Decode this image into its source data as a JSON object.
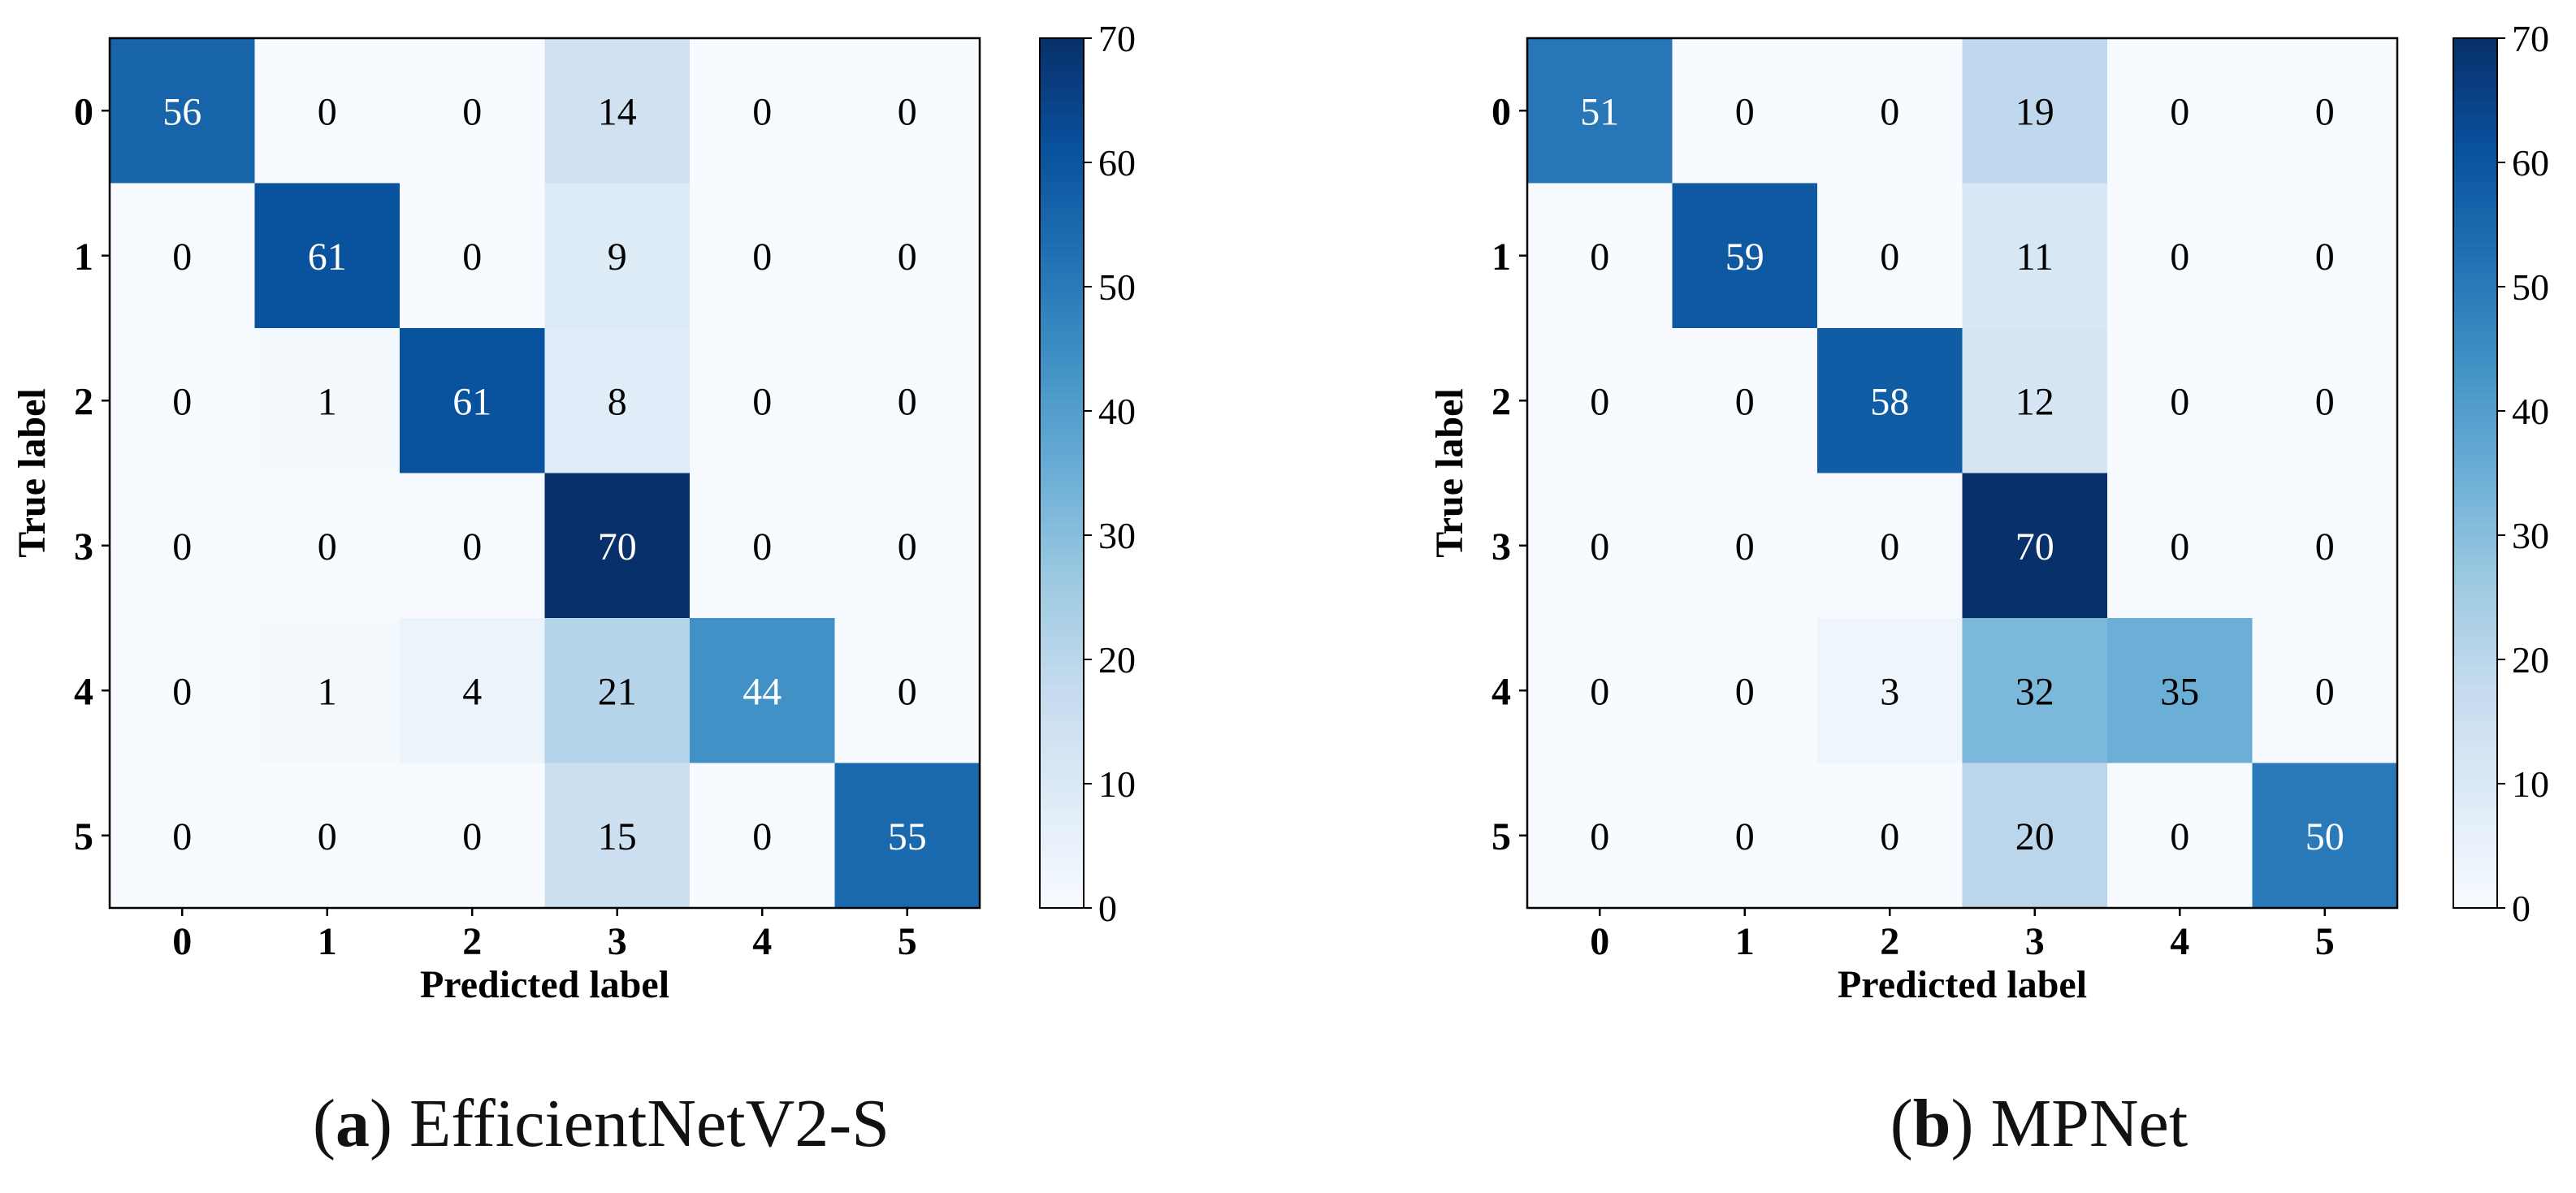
{
  "chart_data": [
    {
      "type": "heatmap",
      "subplot_letter": "a",
      "subplot_title": "EfficientNetV2-S",
      "xlabel": "Predicted label",
      "ylabel": "True label",
      "x_tick_labels": [
        "0",
        "1",
        "2",
        "3",
        "4",
        "5"
      ],
      "y_tick_labels": [
        "0",
        "1",
        "2",
        "3",
        "4",
        "5"
      ],
      "matrix": [
        [
          56,
          0,
          0,
          14,
          0,
          0
        ],
        [
          0,
          61,
          0,
          9,
          0,
          0
        ],
        [
          0,
          1,
          61,
          8,
          0,
          0
        ],
        [
          0,
          0,
          0,
          70,
          0,
          0
        ],
        [
          0,
          1,
          4,
          21,
          44,
          0
        ],
        [
          0,
          0,
          0,
          15,
          0,
          55
        ]
      ],
      "colorbar": {
        "range": [
          0,
          70
        ],
        "ticks": [
          0,
          10,
          20,
          30,
          40,
          50,
          60,
          70
        ],
        "colormap": "Blues"
      }
    },
    {
      "type": "heatmap",
      "subplot_letter": "b",
      "subplot_title": "MPNet",
      "xlabel": "Predicted label",
      "ylabel": "True label",
      "x_tick_labels": [
        "0",
        "1",
        "2",
        "3",
        "4",
        "5"
      ],
      "y_tick_labels": [
        "0",
        "1",
        "2",
        "3",
        "4",
        "5"
      ],
      "matrix": [
        [
          51,
          0,
          0,
          19,
          0,
          0
        ],
        [
          0,
          59,
          0,
          11,
          0,
          0
        ],
        [
          0,
          0,
          58,
          12,
          0,
          0
        ],
        [
          0,
          0,
          0,
          70,
          0,
          0
        ],
        [
          0,
          0,
          3,
          32,
          35,
          0
        ],
        [
          0,
          0,
          0,
          20,
          0,
          50
        ]
      ],
      "colorbar": {
        "range": [
          0,
          70
        ],
        "ticks": [
          0,
          10,
          20,
          30,
          40,
          50,
          60,
          70
        ],
        "colormap": "Blues"
      }
    }
  ],
  "colors": {
    "text_dark": "#000000",
    "text_light": "#ffffff",
    "axis": "#000000"
  }
}
